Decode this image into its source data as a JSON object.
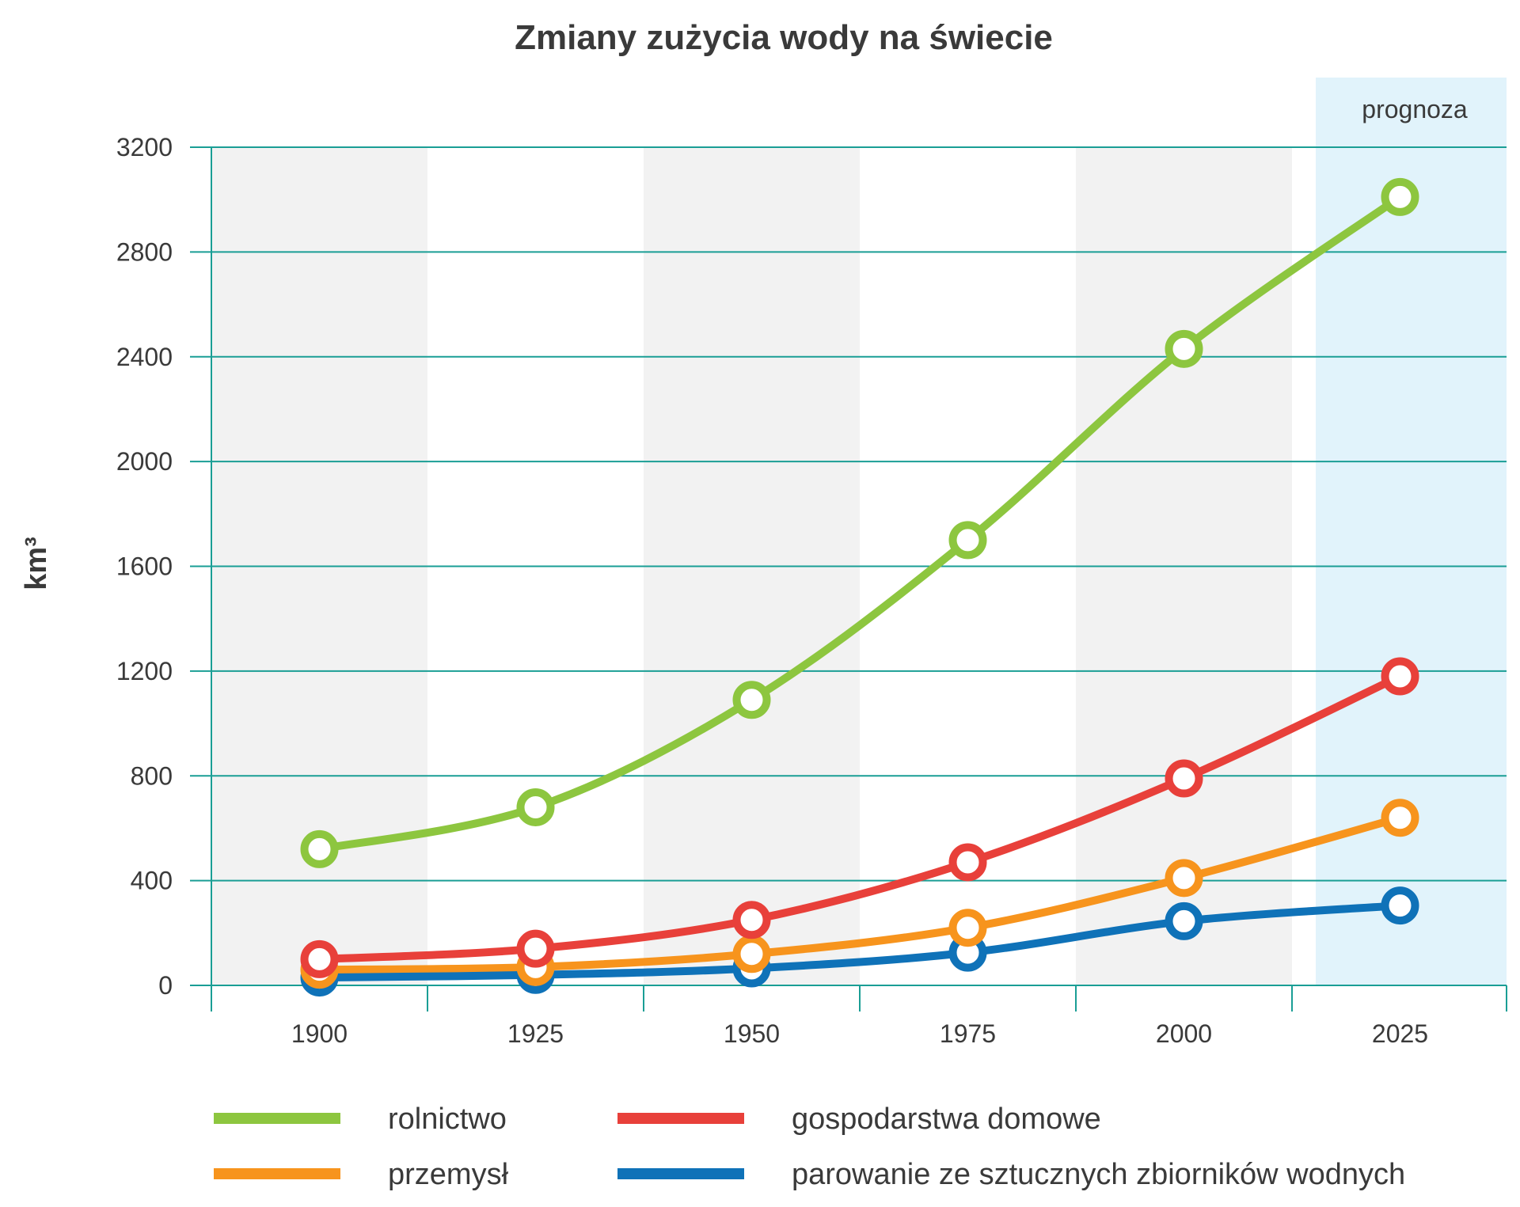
{
  "chart_data": {
    "type": "line",
    "title": "Zmiany zużycia wody na świecie",
    "xlabel": "",
    "ylabel": "km³",
    "x": [
      "1900",
      "1925",
      "1950",
      "1975",
      "2000",
      "2025"
    ],
    "ylim": [
      0,
      3200
    ],
    "yticks": [
      "0",
      "400",
      "800",
      "1200",
      "1600",
      "2000",
      "2400",
      "2800",
      "3200"
    ],
    "forecast_label": "prognoza",
    "forecast_category": "2025",
    "grid": true,
    "legend_position": "bottom",
    "series": [
      {
        "name": "rolnictwo",
        "color": "#8dc63f",
        "values": [
          520,
          680,
          1090,
          1700,
          2430,
          3010
        ]
      },
      {
        "name": "gospodarstwa domowe",
        "color": "#e8403a",
        "values": [
          100,
          140,
          250,
          470,
          790,
          1180
        ]
      },
      {
        "name": "przemysł",
        "color": "#f7941d",
        "values": [
          60,
          70,
          120,
          220,
          410,
          640
        ]
      },
      {
        "name": "parowanie ze sztucznych zbiorników wodnych",
        "color": "#0f72b8",
        "values": [
          30,
          40,
          65,
          125,
          245,
          305
        ]
      }
    ],
    "colors": {
      "grid": "#1a9e95",
      "band": "#f2f2f2",
      "forecast_bg": "#e1f3fb"
    }
  }
}
